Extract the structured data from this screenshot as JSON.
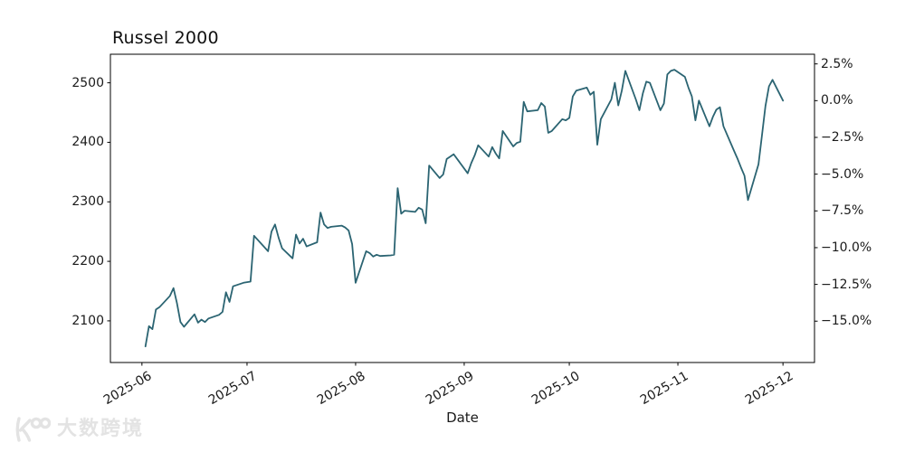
{
  "watermark": {
    "text": "大数跨境",
    "color": "#e3e3e3",
    "logo": "koo-circles-logo"
  },
  "chart_data": {
    "type": "line",
    "title": "Russel 2000",
    "xlabel": "Date",
    "grid": false,
    "legend": null,
    "line_color": "#2b6472",
    "axis_color": "#000000",
    "text_color": "#1a1a1a",
    "xlim_dates": [
      "2025-05-23",
      "2025-12-10"
    ],
    "ylim": [
      2030,
      2548
    ],
    "y_ticks_left": [
      2100,
      2200,
      2300,
      2400,
      2500
    ],
    "x_tick_labels": [
      "2025-06",
      "2025-07",
      "2025-08",
      "2025-09",
      "2025-10",
      "2025-11",
      "2025-12"
    ],
    "x_tick_dates": [
      "2025-06-01",
      "2025-07-01",
      "2025-08-01",
      "2025-09-01",
      "2025-10-01",
      "2025-11-01",
      "2025-12-01"
    ],
    "right_axis": {
      "unit": "percent",
      "reference_value": 2470,
      "tick_percents": [
        2.5,
        0.0,
        -2.5,
        -5.0,
        -7.5,
        -10.0,
        -12.5,
        -15.0
      ],
      "tick_labels": [
        "2.5%",
        "0.0%",
        "−2.5%",
        "−5.0%",
        "−7.5%",
        "−10.0%",
        "−12.5%",
        "−15.0%"
      ]
    },
    "series": [
      {
        "name": "Russel 2000",
        "points": [
          [
            "2025-06-02",
            2057
          ],
          [
            "2025-06-03",
            2091
          ],
          [
            "2025-06-04",
            2086
          ],
          [
            "2025-06-05",
            2119
          ],
          [
            "2025-06-06",
            2123
          ],
          [
            "2025-06-09",
            2142
          ],
          [
            "2025-06-10",
            2155
          ],
          [
            "2025-06-11",
            2130
          ],
          [
            "2025-06-12",
            2098
          ],
          [
            "2025-06-13",
            2090
          ],
          [
            "2025-06-16",
            2111
          ],
          [
            "2025-06-17",
            2097
          ],
          [
            "2025-06-18",
            2102
          ],
          [
            "2025-06-19",
            2098
          ],
          [
            "2025-06-20",
            2104
          ],
          [
            "2025-06-23",
            2110
          ],
          [
            "2025-06-24",
            2115
          ],
          [
            "2025-06-25",
            2148
          ],
          [
            "2025-06-26",
            2132
          ],
          [
            "2025-06-27",
            2158
          ],
          [
            "2025-06-30",
            2164
          ],
          [
            "2025-07-01",
            2165
          ],
          [
            "2025-07-02",
            2166
          ],
          [
            "2025-07-03",
            2243
          ],
          [
            "2025-07-07",
            2217
          ],
          [
            "2025-07-08",
            2250
          ],
          [
            "2025-07-09",
            2262
          ],
          [
            "2025-07-10",
            2240
          ],
          [
            "2025-07-11",
            2222
          ],
          [
            "2025-07-14",
            2205
          ],
          [
            "2025-07-15",
            2245
          ],
          [
            "2025-07-16",
            2230
          ],
          [
            "2025-07-17",
            2238
          ],
          [
            "2025-07-18",
            2225
          ],
          [
            "2025-07-21",
            2232
          ],
          [
            "2025-07-22",
            2282
          ],
          [
            "2025-07-23",
            2262
          ],
          [
            "2025-07-24",
            2256
          ],
          [
            "2025-07-25",
            2258
          ],
          [
            "2025-07-28",
            2260
          ],
          [
            "2025-07-29",
            2257
          ],
          [
            "2025-07-30",
            2252
          ],
          [
            "2025-07-31",
            2229
          ],
          [
            "2025-08-01",
            2164
          ],
          [
            "2025-08-04",
            2217
          ],
          [
            "2025-08-05",
            2214
          ],
          [
            "2025-08-06",
            2208
          ],
          [
            "2025-08-07",
            2211
          ],
          [
            "2025-08-08",
            2209
          ],
          [
            "2025-08-11",
            2210
          ],
          [
            "2025-08-12",
            2211
          ],
          [
            "2025-08-13",
            2323
          ],
          [
            "2025-08-14",
            2280
          ],
          [
            "2025-08-15",
            2285
          ],
          [
            "2025-08-18",
            2283
          ],
          [
            "2025-08-19",
            2290
          ],
          [
            "2025-08-20",
            2287
          ],
          [
            "2025-08-21",
            2264
          ],
          [
            "2025-08-22",
            2361
          ],
          [
            "2025-08-25",
            2340
          ],
          [
            "2025-08-26",
            2346
          ],
          [
            "2025-08-27",
            2372
          ],
          [
            "2025-08-28",
            2376
          ],
          [
            "2025-08-29",
            2380
          ],
          [
            "2025-09-02",
            2348
          ],
          [
            "2025-09-03",
            2365
          ],
          [
            "2025-09-04",
            2378
          ],
          [
            "2025-09-05",
            2395
          ],
          [
            "2025-09-08",
            2376
          ],
          [
            "2025-09-09",
            2392
          ],
          [
            "2025-09-10",
            2381
          ],
          [
            "2025-09-11",
            2373
          ],
          [
            "2025-09-12",
            2419
          ],
          [
            "2025-09-15",
            2393
          ],
          [
            "2025-09-16",
            2399
          ],
          [
            "2025-09-17",
            2401
          ],
          [
            "2025-09-18",
            2468
          ],
          [
            "2025-09-19",
            2452
          ],
          [
            "2025-09-22",
            2454
          ],
          [
            "2025-09-23",
            2466
          ],
          [
            "2025-09-24",
            2460
          ],
          [
            "2025-09-25",
            2416
          ],
          [
            "2025-09-26",
            2419
          ],
          [
            "2025-09-29",
            2439
          ],
          [
            "2025-09-30",
            2437
          ],
          [
            "2025-10-01",
            2441
          ],
          [
            "2025-10-02",
            2477
          ],
          [
            "2025-10-03",
            2487
          ],
          [
            "2025-10-06",
            2492
          ],
          [
            "2025-10-07",
            2480
          ],
          [
            "2025-10-08",
            2485
          ],
          [
            "2025-10-09",
            2396
          ],
          [
            "2025-10-10",
            2439
          ],
          [
            "2025-10-13",
            2472
          ],
          [
            "2025-10-14",
            2500
          ],
          [
            "2025-10-15",
            2462
          ],
          [
            "2025-10-16",
            2487
          ],
          [
            "2025-10-17",
            2520
          ],
          [
            "2025-10-20",
            2472
          ],
          [
            "2025-10-21",
            2454
          ],
          [
            "2025-10-22",
            2482
          ],
          [
            "2025-10-23",
            2502
          ],
          [
            "2025-10-24",
            2500
          ],
          [
            "2025-10-27",
            2454
          ],
          [
            "2025-10-28",
            2465
          ],
          [
            "2025-10-29",
            2514
          ],
          [
            "2025-10-30",
            2520
          ],
          [
            "2025-10-31",
            2522
          ],
          [
            "2025-11-03",
            2510
          ],
          [
            "2025-11-04",
            2492
          ],
          [
            "2025-11-05",
            2477
          ],
          [
            "2025-11-06",
            2437
          ],
          [
            "2025-11-07",
            2470
          ],
          [
            "2025-11-10",
            2427
          ],
          [
            "2025-11-11",
            2443
          ],
          [
            "2025-11-12",
            2455
          ],
          [
            "2025-11-13",
            2459
          ],
          [
            "2025-11-14",
            2427
          ],
          [
            "2025-11-17",
            2386
          ],
          [
            "2025-11-18",
            2373
          ],
          [
            "2025-11-19",
            2358
          ],
          [
            "2025-11-20",
            2344
          ],
          [
            "2025-11-21",
            2303
          ],
          [
            "2025-11-24",
            2363
          ],
          [
            "2025-11-25",
            2411
          ],
          [
            "2025-11-26",
            2461
          ],
          [
            "2025-11-27",
            2494
          ],
          [
            "2025-11-28",
            2505
          ],
          [
            "2025-12-01",
            2470
          ]
        ]
      }
    ]
  }
}
